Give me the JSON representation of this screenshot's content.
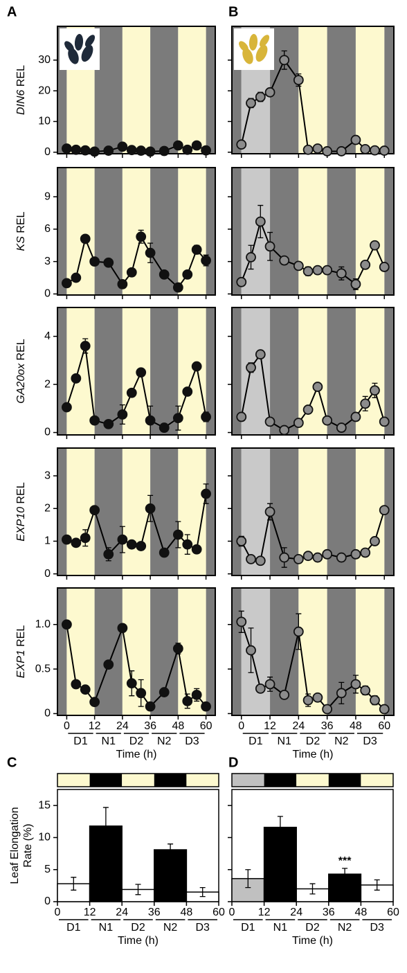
{
  "chart_data": [
    {
      "type": "line",
      "panel": "A",
      "ylabel": "DIN6 REL",
      "x": [
        0,
        4,
        8,
        12,
        18,
        24,
        28,
        32,
        36,
        42,
        48,
        52,
        56,
        60
      ],
      "values": [
        1.2,
        0.8,
        0.6,
        0.2,
        0.5,
        1.8,
        0.7,
        0.5,
        0.2,
        0.4,
        2.2,
        0.8,
        2.2,
        0.6
      ],
      "errors": [
        0.3,
        0.3,
        0.3,
        0.2,
        0.3,
        0.4,
        0.3,
        0.3,
        0.2,
        0.3,
        0.4,
        0.3,
        0.4,
        0.3
      ],
      "xlim": [
        -4,
        64
      ],
      "ylim": [
        -0.5,
        41
      ],
      "yticks": [
        0,
        10,
        20,
        30
      ],
      "xticks": [
        0,
        12,
        24,
        36,
        48,
        60
      ],
      "phase_colors": [
        "#fdf9cf",
        "#7b7b7b",
        "#fdf9cf",
        "#7b7b7b",
        "#fdf9cf"
      ],
      "color": "#111111"
    },
    {
      "type": "line",
      "ylabel": "KS REL",
      "x": [
        0,
        4,
        8,
        12,
        18,
        24,
        28,
        32,
        36,
        42,
        48,
        52,
        56,
        60
      ],
      "values": [
        1,
        1.5,
        5.1,
        3,
        2.9,
        0.9,
        2,
        5.3,
        3.8,
        1.8,
        0.6,
        1.8,
        4.1,
        3.1
      ],
      "errors": [
        0.2,
        0.2,
        0.3,
        0.3,
        0.2,
        0.2,
        0.3,
        0.6,
        0.9,
        0.2,
        0.1,
        0.3,
        0.4,
        0.5
      ],
      "xlim": [
        -4,
        64
      ],
      "ylim": [
        -0.1,
        11.7
      ],
      "yticks": [
        0,
        3,
        6,
        9
      ],
      "xticks": [
        0,
        12,
        24,
        36,
        48,
        60
      ],
      "phase_colors": [
        "#fdf9cf",
        "#7b7b7b",
        "#fdf9cf",
        "#7b7b7b",
        "#fdf9cf"
      ],
      "color": "#111111"
    },
    {
      "type": "line",
      "ylabel": "GA20ox REL",
      "x": [
        0,
        4,
        8,
        12,
        18,
        24,
        28,
        32,
        36,
        42,
        48,
        52,
        56,
        60
      ],
      "values": [
        1.05,
        2.25,
        3.6,
        0.5,
        0.35,
        0.75,
        1.65,
        2.5,
        0.5,
        0.2,
        0.6,
        1.7,
        2.75,
        0.65
      ],
      "errors": [
        0.1,
        0.1,
        0.3,
        0.1,
        0.1,
        0.4,
        0.1,
        0.1,
        0.6,
        0.1,
        0.5,
        0.1,
        0.1,
        0.2
      ],
      "xlim": [
        -4,
        64
      ],
      "ylim": [
        -0.1,
        5.2
      ],
      "yticks": [
        0,
        2,
        4
      ],
      "xticks": [
        0,
        12,
        24,
        36,
        48,
        60
      ],
      "phase_colors": [
        "#fdf9cf",
        "#7b7b7b",
        "#fdf9cf",
        "#7b7b7b",
        "#fdf9cf"
      ],
      "color": "#111111"
    },
    {
      "type": "line",
      "ylabel": "EXP10 REL",
      "x": [
        0,
        4,
        8,
        12,
        18,
        24,
        28,
        32,
        36,
        42,
        48,
        52,
        56,
        60
      ],
      "values": [
        1.05,
        0.95,
        1.1,
        1.95,
        0.6,
        1.05,
        0.9,
        0.85,
        2.0,
        0.65,
        1.2,
        0.9,
        0.75,
        2.45
      ],
      "errors": [
        0.05,
        0.1,
        0.25,
        0.05,
        0.2,
        0.4,
        0.05,
        0.05,
        0.4,
        0.05,
        0.4,
        0.3,
        0.05,
        0.3
      ],
      "xlim": [
        -4,
        64
      ],
      "ylim": [
        -0.05,
        3.85
      ],
      "yticks": [
        0,
        1,
        2,
        3
      ],
      "xticks": [
        0,
        12,
        24,
        36,
        48,
        60
      ],
      "phase_colors": [
        "#fdf9cf",
        "#7b7b7b",
        "#fdf9cf",
        "#7b7b7b",
        "#fdf9cf"
      ],
      "color": "#111111"
    },
    {
      "type": "line",
      "ylabel": "EXP1 REL",
      "x": [
        0,
        4,
        8,
        12,
        18,
        24,
        28,
        32,
        36,
        42,
        48,
        52,
        56,
        60
      ],
      "values": [
        1.0,
        0.33,
        0.27,
        0.13,
        0.55,
        0.96,
        0.34,
        0.23,
        0.08,
        0.24,
        0.73,
        0.14,
        0.21,
        0.08
      ],
      "errors": [
        0.02,
        0.03,
        0.03,
        0.03,
        0.03,
        0.02,
        0.14,
        0.15,
        0.02,
        0.04,
        0.06,
        0.08,
        0.07,
        0.03
      ],
      "xlim": [
        -4,
        64
      ],
      "ylim": [
        -0.02,
        1.41
      ],
      "yticks": [
        0,
        0.5,
        {
          "value": 1,
          "label": "1.0"
        }
      ],
      "xticks": [
        0,
        12,
        24,
        36,
        48,
        60
      ],
      "phase_colors": [
        "#fdf9cf",
        "#7b7b7b",
        "#fdf9cf",
        "#7b7b7b",
        "#fdf9cf"
      ],
      "color": "#111111",
      "periods": [
        "D1",
        "N1",
        "D2",
        "N2",
        "D3"
      ],
      "xlabel": "Time (h)"
    },
    {
      "type": "line",
      "panel": "B",
      "x": [
        0,
        4,
        8,
        12,
        18,
        24,
        28,
        32,
        36,
        42,
        48,
        52,
        56,
        60
      ],
      "values": [
        2.5,
        16,
        18,
        19.5,
        30,
        23.5,
        0.8,
        1.2,
        0.3,
        0.3,
        4,
        1,
        0.6,
        0.5
      ],
      "errors": [
        1,
        1.5,
        1.5,
        1,
        3,
        2,
        0.5,
        1,
        0.3,
        0.3,
        1,
        0.5,
        0.3,
        0.3
      ],
      "xlim": [
        -4,
        64
      ],
      "ylim": [
        -0.5,
        41
      ],
      "yticks": [
        0,
        10,
        20,
        30
      ],
      "xticks": [
        0,
        12,
        24,
        36,
        48,
        60
      ],
      "phase_colors": [
        "#c9c9c9",
        "#7b7b7b",
        "#fdf9cf",
        "#7b7b7b",
        "#fdf9cf"
      ],
      "color": "#8c8c8c"
    },
    {
      "type": "line",
      "x": [
        0,
        4,
        8,
        12,
        18,
        24,
        28,
        32,
        36,
        42,
        48,
        52,
        56,
        60
      ],
      "values": [
        1.1,
        3.4,
        6.7,
        4.4,
        3.1,
        2.6,
        2.1,
        2.2,
        2.2,
        1.9,
        0.9,
        2.7,
        4.5,
        2.5
      ],
      "errors": [
        0.2,
        1.1,
        1.5,
        1.3,
        0.2,
        0.2,
        0.4,
        0.3,
        0.2,
        0.6,
        0.5,
        0.3,
        0.2,
        0.3
      ],
      "xlim": [
        -4,
        64
      ],
      "ylim": [
        -0.1,
        11.7
      ],
      "yticks": [
        0,
        3,
        6,
        9
      ],
      "xticks": [
        0,
        12,
        24,
        36,
        48,
        60
      ],
      "phase_colors": [
        "#c9c9c9",
        "#7b7b7b",
        "#fdf9cf",
        "#7b7b7b",
        "#fdf9cf"
      ],
      "color": "#8c8c8c"
    },
    {
      "type": "line",
      "x": [
        0,
        4,
        8,
        12,
        18,
        24,
        28,
        32,
        36,
        42,
        48,
        52,
        56,
        60
      ],
      "values": [
        0.65,
        2.7,
        3.25,
        0.45,
        0.1,
        0.4,
        0.95,
        1.9,
        0.5,
        0.2,
        0.65,
        1.2,
        1.75,
        0.45
      ],
      "errors": [
        0.05,
        0.2,
        0.1,
        0.05,
        0.05,
        0.1,
        0.15,
        0.1,
        0.05,
        0.05,
        0.1,
        0.3,
        0.3,
        0.1
      ],
      "xlim": [
        -4,
        64
      ],
      "ylim": [
        -0.1,
        5.2
      ],
      "yticks": [
        0,
        2,
        4
      ],
      "xticks": [
        0,
        12,
        24,
        36,
        48,
        60
      ],
      "phase_colors": [
        "#c9c9c9",
        "#7b7b7b",
        "#fdf9cf",
        "#7b7b7b",
        "#fdf9cf"
      ],
      "color": "#8c8c8c"
    },
    {
      "type": "line",
      "x": [
        0,
        4,
        8,
        12,
        18,
        24,
        28,
        32,
        36,
        42,
        48,
        52,
        56,
        60
      ],
      "values": [
        1.0,
        0.45,
        0.4,
        1.9,
        0.5,
        0.45,
        0.55,
        0.5,
        0.6,
        0.5,
        0.6,
        0.65,
        1.0,
        1.95
      ],
      "errors": [
        0.15,
        0.05,
        0.05,
        0.25,
        0.3,
        0.05,
        0.05,
        0.1,
        0.05,
        0.05,
        0.05,
        0.05,
        0.05,
        0.05
      ],
      "xlim": [
        -4,
        64
      ],
      "ylim": [
        -0.05,
        3.85
      ],
      "yticks": [
        0,
        1,
        2,
        3
      ],
      "xticks": [
        0,
        12,
        24,
        36,
        48,
        60
      ],
      "phase_colors": [
        "#c9c9c9",
        "#7b7b7b",
        "#fdf9cf",
        "#7b7b7b",
        "#fdf9cf"
      ],
      "color": "#8c8c8c"
    },
    {
      "type": "line",
      "x": [
        0,
        4,
        8,
        12,
        18,
        24,
        28,
        32,
        36,
        42,
        48,
        52,
        56,
        60
      ],
      "values": [
        1.03,
        0.71,
        0.28,
        0.33,
        0.21,
        0.92,
        0.15,
        0.18,
        0.05,
        0.23,
        0.33,
        0.26,
        0.15,
        0.05
      ],
      "errors": [
        0.12,
        0.25,
        0.03,
        0.08,
        0.02,
        0.2,
        0.07,
        0.03,
        0.02,
        0.12,
        0.1,
        0.05,
        0.05,
        0.03
      ],
      "xlim": [
        -4,
        64
      ],
      "ylim": [
        -0.02,
        1.41
      ],
      "yticks": [
        0,
        0.5,
        {
          "value": 1,
          "label": "1.0"
        }
      ],
      "xticks": [
        0,
        12,
        24,
        36,
        48,
        60
      ],
      "phase_colors": [
        "#c9c9c9",
        "#7b7b7b",
        "#fdf9cf",
        "#7b7b7b",
        "#fdf9cf"
      ],
      "color": "#8c8c8c",
      "periods": [
        "D1",
        "N1",
        "D2",
        "N2",
        "D3"
      ],
      "xlabel": "Time (h)"
    },
    {
      "type": "bar",
      "panel": "C",
      "ylabel": [
        "Leaf Elongation",
        "Rate (%)"
      ],
      "periods": [
        "D1",
        "N1",
        "D2",
        "N2",
        "D3"
      ],
      "values": [
        2.8,
        11.8,
        1.9,
        8.1,
        1.5
      ],
      "errors": [
        1,
        2.9,
        0.8,
        0.9,
        0.7
      ],
      "colors": [
        "#ffffff",
        "#000000",
        "#ffffff",
        "#000000",
        "#ffffff"
      ],
      "phase_colors": [
        "#fdf9cf",
        "#000000",
        "#fdf9cf",
        "#000000",
        "#fdf9cf"
      ],
      "xlim": [
        0,
        60
      ],
      "ylim": [
        0,
        17.5
      ],
      "xticks": [
        0,
        12,
        24,
        36,
        48,
        60
      ],
      "yticks": [
        0,
        5,
        10,
        15
      ],
      "xlabel": "Time (h)"
    },
    {
      "type": "bar",
      "panel": "D",
      "periods": [
        "D1",
        "N1",
        "D2",
        "N2",
        "D3"
      ],
      "values": [
        3.6,
        11.6,
        2.0,
        4.3,
        2.6
      ],
      "errors": [
        1.4,
        1.7,
        0.8,
        0.9,
        0.8
      ],
      "colors": [
        "#c0c0c0",
        "#000000",
        "#ffffff",
        "#000000",
        "#ffffff"
      ],
      "phase_colors": [
        "#c0c0c0",
        "#000000",
        "#fdf9cf",
        "#000000",
        "#fdf9cf"
      ],
      "significance": [
        null,
        null,
        null,
        "***",
        null
      ],
      "xlim": [
        0,
        60
      ],
      "ylim": [
        0,
        17.5
      ],
      "xticks": [
        0,
        12,
        24,
        36,
        48,
        60
      ],
      "yticks": [
        0,
        5,
        10,
        15
      ],
      "xlabel": "Time (h)"
    }
  ]
}
